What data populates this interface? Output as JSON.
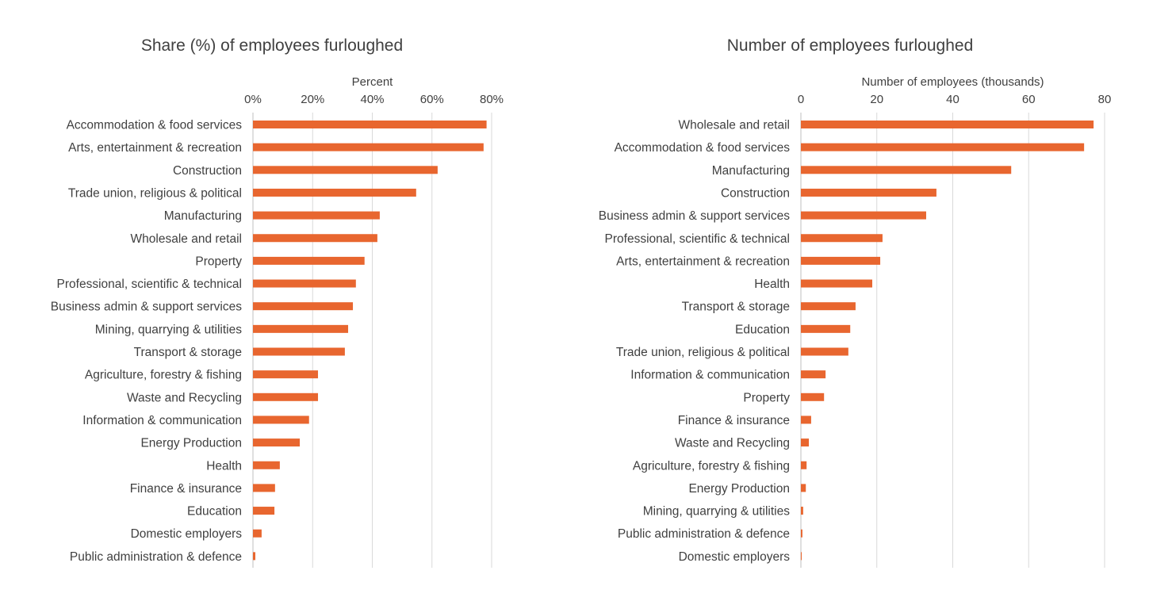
{
  "chart_data": [
    {
      "type": "bar",
      "orientation": "horizontal",
      "title": "Share (%) of employees furloughed",
      "xlabel": "Percent",
      "xlim": [
        0,
        80
      ],
      "xticks": [
        "0%",
        "20%",
        "40%",
        "60%",
        "80%"
      ],
      "grid": true,
      "color": "#E8662F",
      "categories": [
        "Accommodation & food services",
        "Arts, entertainment & recreation",
        "Construction",
        "Trade union, religious & political",
        "Manufacturing",
        "Wholesale and retail",
        "Property",
        "Professional, scientific & technical",
        "Business admin & support services",
        "Mining, quarrying & utilities",
        "Transport & storage",
        "Agriculture, forestry & fishing",
        "Waste and Recycling",
        "Information & communication",
        "Energy Production",
        "Health",
        "Finance & insurance",
        "Education",
        "Domestic employers",
        "Public administration & defence"
      ],
      "values": [
        78.3,
        77.3,
        61.9,
        54.7,
        42.5,
        41.7,
        37.4,
        34.5,
        33.5,
        31.9,
        30.8,
        21.8,
        21.8,
        18.8,
        15.7,
        9.0,
        7.4,
        7.2,
        2.9,
        0.8
      ]
    },
    {
      "type": "bar",
      "orientation": "horizontal",
      "title": "Number of employees furloughed",
      "xlabel": "Number of employees (thousands)",
      "xlim": [
        0,
        80
      ],
      "xticks": [
        "0",
        "20",
        "40",
        "60",
        "80"
      ],
      "grid": true,
      "color": "#E8662F",
      "categories": [
        "Wholesale and retail",
        "Accommodation & food services",
        "Manufacturing",
        "Construction",
        "Business admin & support services",
        "Professional, scientific & technical",
        "Arts, entertainment & recreation",
        "Health",
        "Transport & storage",
        "Education",
        "Trade union, religious & political",
        "Information & communication",
        "Property",
        "Finance & insurance",
        "Waste and Recycling",
        "Agriculture, forestry & fishing",
        "Energy Production",
        "Mining, quarrying & utilities",
        "Public administration & defence",
        "Domestic employers"
      ],
      "values": [
        77.1,
        74.6,
        55.4,
        35.7,
        33.0,
        21.5,
        20.9,
        18.8,
        14.4,
        13.0,
        12.5,
        6.5,
        6.1,
        2.7,
        2.1,
        1.5,
        1.3,
        0.6,
        0.4,
        0.1
      ]
    }
  ]
}
